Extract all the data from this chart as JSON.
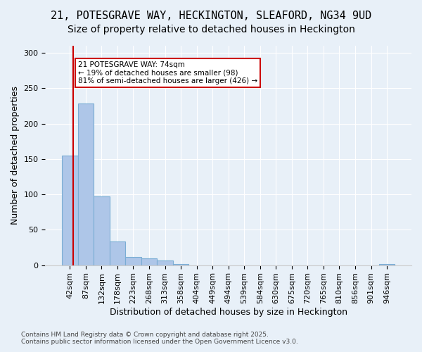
{
  "title_line1": "21, POTESGRAVE WAY, HECKINGTON, SLEAFORD, NG34 9UD",
  "title_line2": "Size of property relative to detached houses in Heckington",
  "xlabel": "Distribution of detached houses by size in Heckington",
  "ylabel": "Number of detached properties",
  "categories": [
    "42sqm",
    "87sqm",
    "132sqm",
    "178sqm",
    "223sqm",
    "268sqm",
    "313sqm",
    "358sqm",
    "404sqm",
    "449sqm",
    "494sqm",
    "539sqm",
    "584sqm",
    "630sqm",
    "675sqm",
    "720sqm",
    "765sqm",
    "810sqm",
    "856sqm",
    "901sqm",
    "946sqm"
  ],
  "values": [
    155,
    228,
    97,
    33,
    12,
    10,
    7,
    2,
    0,
    0,
    0,
    0,
    0,
    0,
    0,
    0,
    0,
    0,
    0,
    0,
    2
  ],
  "bar_color": "#aec6e8",
  "bar_edge_color": "#7aadd4",
  "annotation_text": "21 POTESGRAVE WAY: 74sqm\n← 19% of detached houses are smaller (98)\n81% of semi-detached houses are larger (426) →",
  "annotation_box_color": "#ffffff",
  "annotation_box_edge": "#cc0000",
  "red_line_color": "#cc0000",
  "background_color": "#e8f0f8",
  "plot_bg_color": "#e8f0f8",
  "footer_line1": "Contains HM Land Registry data © Crown copyright and database right 2025.",
  "footer_line2": "Contains public sector information licensed under the Open Government Licence v3.0.",
  "ylim": [
    0,
    310
  ],
  "title_fontsize": 11,
  "subtitle_fontsize": 10,
  "tick_fontsize": 8,
  "axis_label_fontsize": 9
}
